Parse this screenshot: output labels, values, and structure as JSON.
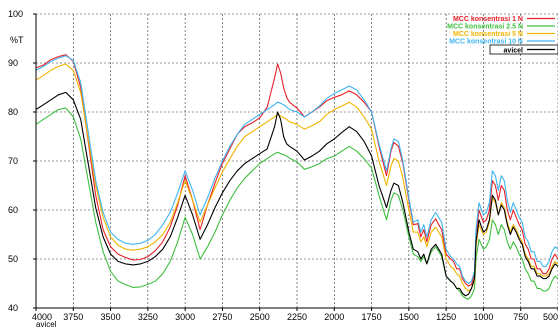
{
  "chart_data": {
    "type": "line",
    "ylabel": "%T",
    "xlabel": "",
    "xlim": [
      4000,
      500
    ],
    "ylim": [
      40,
      100
    ],
    "x_ticks": [
      4000,
      3750,
      3500,
      3250,
      3000,
      2750,
      2500,
      2250,
      2000,
      1750,
      1500,
      1250,
      1000,
      750,
      500
    ],
    "x_tick_labels": [
      "4000",
      "3750",
      "3500",
      "3250",
      "3000",
      "2750",
      "2500",
      "2250",
      "2000",
      "1750",
      "1500",
      "1250",
      "1000",
      "750",
      "500"
    ],
    "y_ticks": [
      40,
      50,
      60,
      70,
      80,
      90,
      100
    ],
    "y_tick_labels": [
      "40",
      "50",
      "60",
      "70",
      "80",
      "90",
      "100"
    ],
    "grid": true,
    "legend_position": "top-right",
    "bottom_note": "avicel",
    "series": [
      {
        "name": "MCC konsentrasi 1 N",
        "color": "#e8202a",
        "x": [
          4000,
          3950,
          3900,
          3850,
          3800,
          3750,
          3700,
          3650,
          3600,
          3550,
          3500,
          3450,
          3400,
          3350,
          3300,
          3250,
          3200,
          3150,
          3100,
          3050,
          3000,
          2950,
          2900,
          2850,
          2800,
          2750,
          2700,
          2650,
          2600,
          2550,
          2500,
          2450,
          2400,
          2380,
          2360,
          2340,
          2320,
          2300,
          2250,
          2200,
          2150,
          2100,
          2050,
          2000,
          1950,
          1900,
          1850,
          1800,
          1750,
          1700,
          1650,
          1620,
          1600,
          1570,
          1540,
          1500,
          1470,
          1440,
          1420,
          1400,
          1380,
          1350,
          1320,
          1300,
          1280,
          1250,
          1220,
          1200,
          1180,
          1160,
          1140,
          1120,
          1100,
          1080,
          1060,
          1050,
          1030,
          1000,
          980,
          960,
          940,
          920,
          900,
          880,
          860,
          840,
          820,
          800,
          780,
          760,
          740,
          720,
          700,
          680,
          660,
          640,
          620,
          600,
          580,
          560,
          540,
          520,
          500
        ],
        "y": [
          89.0,
          89.6,
          90.7,
          91.3,
          91.7,
          90.3,
          85.0,
          74.0,
          63.0,
          56.0,
          52.5,
          51.0,
          50.3,
          49.8,
          49.9,
          50.5,
          51.7,
          53.5,
          56.5,
          61.0,
          67.0,
          62.0,
          56.0,
          61.0,
          65.5,
          69.5,
          72.5,
          75.5,
          77.0,
          77.8,
          78.8,
          81.0,
          87.0,
          89.8,
          88.0,
          85.0,
          83.0,
          82.0,
          80.8,
          79.0,
          80.0,
          81.0,
          82.3,
          83.0,
          83.5,
          84.3,
          83.5,
          82.0,
          80.0,
          73.0,
          67.0,
          72.0,
          73.8,
          73.0,
          69.5,
          62.0,
          57.0,
          57.2,
          54.5,
          56.0,
          53.5,
          57.0,
          58.2,
          57.0,
          56.0,
          51.0,
          50.0,
          49.5,
          48.0,
          48.0,
          46.0,
          45.0,
          44.5,
          44.8,
          47.0,
          55.0,
          60.0,
          57.5,
          58.0,
          60.0,
          66.0,
          65.0,
          62.0,
          65.0,
          64.0,
          60.0,
          58.0,
          60.0,
          58.5,
          57.0,
          56.0,
          53.0,
          52.0,
          50.0,
          50.0,
          48.0,
          48.0,
          47.0,
          47.0,
          48.0,
          50.0,
          51.0,
          50.0
        ]
      },
      {
        "name": "MCC konsentrasi 2.5 N",
        "color": "#3fbf3f",
        "x": [
          4000,
          3950,
          3900,
          3850,
          3800,
          3750,
          3700,
          3650,
          3600,
          3550,
          3500,
          3450,
          3400,
          3350,
          3300,
          3250,
          3200,
          3150,
          3100,
          3050,
          3000,
          2950,
          2900,
          2850,
          2800,
          2750,
          2700,
          2650,
          2600,
          2550,
          2500,
          2450,
          2400,
          2380,
          2360,
          2340,
          2320,
          2300,
          2250,
          2200,
          2150,
          2100,
          2050,
          2000,
          1950,
          1900,
          1850,
          1800,
          1750,
          1700,
          1650,
          1620,
          1600,
          1570,
          1540,
          1500,
          1470,
          1440,
          1420,
          1400,
          1380,
          1350,
          1320,
          1300,
          1280,
          1250,
          1220,
          1200,
          1180,
          1160,
          1140,
          1120,
          1100,
          1080,
          1060,
          1050,
          1030,
          1000,
          980,
          960,
          940,
          920,
          900,
          880,
          860,
          840,
          820,
          800,
          780,
          760,
          740,
          720,
          700,
          680,
          660,
          640,
          620,
          600,
          580,
          560,
          540,
          520,
          500
        ],
        "y": [
          77.5,
          78.5,
          79.5,
          80.5,
          80.8,
          79.0,
          74.5,
          66.0,
          57.5,
          51.5,
          47.5,
          45.5,
          44.8,
          44.2,
          44.3,
          44.8,
          45.5,
          47.0,
          49.5,
          53.5,
          58.5,
          55.0,
          50.0,
          52.5,
          55.5,
          59.0,
          62.0,
          64.5,
          66.5,
          68.0,
          69.5,
          70.5,
          71.5,
          71.8,
          71.5,
          71.3,
          71.0,
          70.6,
          69.8,
          68.3,
          68.8,
          69.5,
          70.5,
          71.0,
          72.0,
          73.0,
          72.0,
          70.5,
          68.5,
          63.0,
          58.0,
          62.0,
          63.5,
          63.0,
          60.0,
          54.5,
          51.0,
          50.5,
          49.5,
          50.5,
          49.0,
          51.5,
          52.5,
          51.5,
          50.5,
          46.5,
          45.5,
          45.0,
          44.0,
          43.5,
          42.5,
          42.0,
          41.8,
          42.5,
          44.0,
          50.0,
          54.0,
          52.0,
          52.5,
          54.0,
          58.0,
          57.0,
          55.0,
          57.0,
          56.0,
          53.5,
          52.0,
          53.5,
          52.5,
          51.0,
          50.0,
          48.0,
          47.0,
          45.5,
          45.5,
          44.0,
          44.0,
          43.5,
          43.5,
          44.0,
          45.5,
          46.5,
          46.0
        ]
      },
      {
        "name": "MCC konsentrasi 5 N",
        "color": "#f0b400",
        "x": [
          4000,
          3950,
          3900,
          3850,
          3800,
          3750,
          3700,
          3650,
          3600,
          3550,
          3500,
          3450,
          3400,
          3350,
          3300,
          3250,
          3200,
          3150,
          3100,
          3050,
          3000,
          2950,
          2900,
          2850,
          2800,
          2750,
          2700,
          2650,
          2600,
          2550,
          2500,
          2450,
          2400,
          2380,
          2360,
          2340,
          2320,
          2300,
          2250,
          2200,
          2150,
          2100,
          2050,
          2000,
          1950,
          1900,
          1850,
          1800,
          1750,
          1700,
          1650,
          1620,
          1600,
          1570,
          1540,
          1500,
          1470,
          1440,
          1420,
          1400,
          1380,
          1350,
          1320,
          1300,
          1280,
          1250,
          1220,
          1200,
          1180,
          1160,
          1140,
          1120,
          1100,
          1080,
          1060,
          1050,
          1030,
          1000,
          980,
          960,
          940,
          920,
          900,
          880,
          860,
          840,
          820,
          800,
          780,
          760,
          740,
          720,
          700,
          680,
          660,
          640,
          620,
          600,
          580,
          560,
          540,
          520,
          500
        ],
        "y": [
          86.5,
          87.5,
          88.5,
          89.3,
          89.8,
          88.5,
          84.0,
          74.5,
          65.0,
          58.5,
          54.5,
          52.8,
          52.0,
          51.8,
          52.0,
          52.5,
          53.5,
          55.0,
          57.5,
          61.5,
          66.0,
          62.0,
          57.5,
          61.0,
          64.5,
          67.8,
          70.5,
          73.0,
          75.0,
          76.0,
          77.0,
          78.0,
          79.0,
          79.5,
          79.2,
          78.8,
          78.5,
          78.0,
          77.5,
          76.5,
          77.2,
          78.0,
          79.5,
          80.5,
          81.2,
          82.0,
          81.0,
          79.0,
          76.5,
          70.0,
          65.0,
          69.0,
          70.5,
          70.0,
          66.5,
          60.0,
          55.5,
          55.5,
          53.5,
          54.5,
          52.5,
          55.5,
          56.5,
          55.5,
          54.5,
          50.0,
          48.5,
          48.0,
          47.0,
          46.5,
          45.0,
          44.0,
          43.5,
          44.0,
          45.5,
          52.5,
          57.0,
          55.0,
          55.5,
          57.5,
          62.5,
          61.5,
          59.0,
          61.5,
          60.5,
          57.5,
          55.5,
          57.0,
          56.0,
          54.5,
          53.5,
          51.0,
          50.0,
          48.5,
          48.5,
          47.0,
          47.0,
          46.5,
          46.5,
          47.0,
          48.5,
          49.5,
          49.0
        ]
      },
      {
        "name": "MCC konsentrasi 10 N",
        "color": "#3fb4f0",
        "x": [
          4000,
          3950,
          3900,
          3850,
          3800,
          3750,
          3700,
          3650,
          3600,
          3550,
          3500,
          3450,
          3400,
          3350,
          3300,
          3250,
          3200,
          3150,
          3100,
          3050,
          3000,
          2950,
          2900,
          2850,
          2800,
          2750,
          2700,
          2650,
          2600,
          2550,
          2500,
          2450,
          2400,
          2380,
          2360,
          2340,
          2320,
          2300,
          2250,
          2200,
          2150,
          2100,
          2050,
          2000,
          1950,
          1900,
          1850,
          1800,
          1750,
          1700,
          1650,
          1620,
          1600,
          1570,
          1540,
          1500,
          1470,
          1440,
          1420,
          1400,
          1380,
          1350,
          1320,
          1300,
          1280,
          1250,
          1220,
          1200,
          1180,
          1160,
          1140,
          1120,
          1100,
          1080,
          1060,
          1050,
          1030,
          1000,
          980,
          960,
          940,
          920,
          900,
          880,
          860,
          840,
          820,
          800,
          780,
          760,
          740,
          720,
          700,
          680,
          660,
          640,
          620,
          600,
          580,
          560,
          540,
          520,
          500
        ],
        "y": [
          88.5,
          89.3,
          90.3,
          91.0,
          91.5,
          90.5,
          86.0,
          76.0,
          66.0,
          59.5,
          55.5,
          54.0,
          53.2,
          53.0,
          53.2,
          53.8,
          55.0,
          57.0,
          59.5,
          63.5,
          68.0,
          64.0,
          59.0,
          62.5,
          66.5,
          70.0,
          73.0,
          75.5,
          77.5,
          78.5,
          79.5,
          80.5,
          81.5,
          82.0,
          81.8,
          81.5,
          81.0,
          80.5,
          80.0,
          79.0,
          80.0,
          81.2,
          82.8,
          83.8,
          84.5,
          85.3,
          84.5,
          82.5,
          80.0,
          73.5,
          68.0,
          72.5,
          74.5,
          74.0,
          70.0,
          62.5,
          57.5,
          58.0,
          55.5,
          57.0,
          54.5,
          58.0,
          59.5,
          58.5,
          57.5,
          52.0,
          50.5,
          50.0,
          49.0,
          48.5,
          46.5,
          45.5,
          45.0,
          45.5,
          47.5,
          56.0,
          61.5,
          59.0,
          59.5,
          61.5,
          68.0,
          67.0,
          64.0,
          67.0,
          66.0,
          62.0,
          59.5,
          61.5,
          60.0,
          58.5,
          57.5,
          54.5,
          53.5,
          51.5,
          51.5,
          49.5,
          49.5,
          48.5,
          48.5,
          49.5,
          51.5,
          52.5,
          52.0
        ]
      },
      {
        "name": "avicel",
        "color": "#000000",
        "x": [
          4000,
          3950,
          3900,
          3850,
          3800,
          3750,
          3700,
          3650,
          3600,
          3550,
          3500,
          3450,
          3400,
          3350,
          3300,
          3250,
          3200,
          3150,
          3100,
          3050,
          3000,
          2950,
          2900,
          2850,
          2800,
          2750,
          2700,
          2650,
          2600,
          2550,
          2500,
          2450,
          2400,
          2380,
          2360,
          2340,
          2320,
          2300,
          2250,
          2200,
          2150,
          2100,
          2050,
          2000,
          1950,
          1900,
          1850,
          1800,
          1750,
          1700,
          1650,
          1620,
          1600,
          1570,
          1540,
          1500,
          1470,
          1440,
          1420,
          1400,
          1380,
          1350,
          1320,
          1300,
          1280,
          1250,
          1220,
          1200,
          1180,
          1160,
          1140,
          1120,
          1100,
          1080,
          1060,
          1050,
          1030,
          1000,
          980,
          960,
          940,
          920,
          900,
          880,
          860,
          840,
          820,
          800,
          780,
          760,
          740,
          720,
          700,
          680,
          660,
          640,
          620,
          600,
          580,
          560,
          540,
          520,
          500
        ],
        "y": [
          80.5,
          81.5,
          82.5,
          83.5,
          84.0,
          82.5,
          78.5,
          69.5,
          60.5,
          54.5,
          51.0,
          49.5,
          49.0,
          48.8,
          49.0,
          49.5,
          50.5,
          52.0,
          54.5,
          58.5,
          63.0,
          59.0,
          54.0,
          57.0,
          60.5,
          63.5,
          66.0,
          68.0,
          69.5,
          70.5,
          71.5,
          72.5,
          77.0,
          80.0,
          78.5,
          75.0,
          73.5,
          73.0,
          72.0,
          70.2,
          71.0,
          72.0,
          73.5,
          74.5,
          75.8,
          77.0,
          76.0,
          74.0,
          71.0,
          65.0,
          60.5,
          64.0,
          65.5,
          65.0,
          61.5,
          55.5,
          52.0,
          51.5,
          50.0,
          51.0,
          49.0,
          52.0,
          53.0,
          52.0,
          51.0,
          46.5,
          45.5,
          45.0,
          44.0,
          44.0,
          43.0,
          42.5,
          42.8,
          44.0,
          46.0,
          53.5,
          58.0,
          55.5,
          56.0,
          58.0,
          63.0,
          62.0,
          59.0,
          61.0,
          60.0,
          57.0,
          55.0,
          56.5,
          55.5,
          54.0,
          53.0,
          50.5,
          49.5,
          48.0,
          48.0,
          46.5,
          46.5,
          46.0,
          46.0,
          46.5,
          48.0,
          49.0,
          48.5
        ]
      }
    ]
  }
}
